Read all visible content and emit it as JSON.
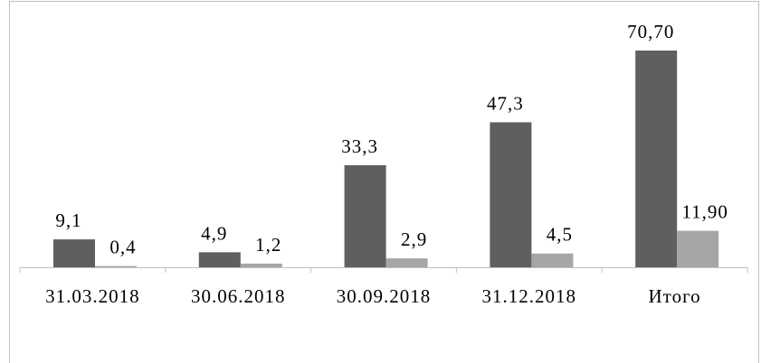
{
  "chart_data": {
    "type": "bar",
    "categories": [
      "31.03.2018",
      "30.06.2018",
      "30.09.2018",
      "31.12.2018",
      "Итого"
    ],
    "series": [
      {
        "color": "#5f5f5f",
        "values": [
          9.1,
          4.9,
          33.3,
          47.3,
          70.7
        ],
        "value_labels": [
          "9,1",
          "4,9",
          "33,3",
          "47,3",
          "70,70"
        ]
      },
      {
        "color": "#a6a6a6",
        "values": [
          0.4,
          1.2,
          2.9,
          4.5,
          11.9
        ],
        "value_labels": [
          "0,4",
          "1,2",
          "2,9",
          "4,5",
          "11,90"
        ]
      }
    ]
  }
}
